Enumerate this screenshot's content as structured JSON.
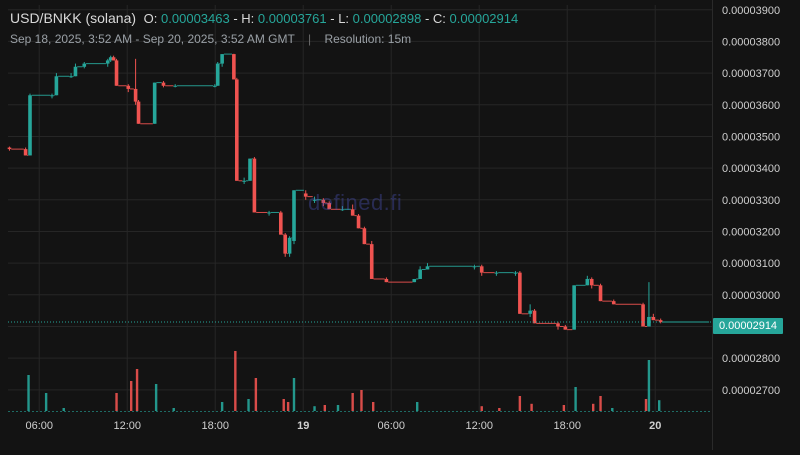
{
  "header": {
    "pair": "USD/BNKK (solana)",
    "open_label": "O:",
    "open": "0.00003463",
    "high_label": "H:",
    "high": "0.00003761",
    "low_label": "L:",
    "low": "0.00002898",
    "close_label": "C:",
    "close": "0.00002914",
    "range": "Sep 18, 2025, 3:52 AM - Sep 20, 2025, 3:52 AM GMT",
    "separator": "|",
    "resolution": "Resolution: 15m"
  },
  "watermark": "defined.fi",
  "last_price_tag": "0.00002914",
  "colors": {
    "up": "#26a69a",
    "down": "#ef5350",
    "grid": "#262626",
    "bg": "#131313"
  },
  "chart_data": {
    "type": "candlestick",
    "y_axis": {
      "ticks": [
        "0.00003900",
        "0.00003800",
        "0.00003700",
        "0.00003600",
        "0.00003500",
        "0.00003400",
        "0.00003300",
        "0.00003200",
        "0.00003100",
        "0.00003000",
        "0.00002900",
        "0.00002800",
        "0.00002700"
      ],
      "tick_values": [
        3.9e-05,
        3.8e-05,
        3.7e-05,
        3.6e-05,
        3.5e-05,
        3.4e-05,
        3.3e-05,
        3.2e-05,
        3.1e-05,
        3e-05,
        2.9e-05,
        2.8e-05,
        2.7e-05
      ],
      "ylim": [
        2.63e-05,
        3.915e-05
      ]
    },
    "x_axis": {
      "ticks": [
        "06:00",
        "12:00",
        "18:00",
        "19",
        "06:00",
        "12:00",
        "18:00",
        "20"
      ],
      "tick_hours": [
        2.13,
        8.13,
        14.13,
        20.13,
        26.13,
        32.13,
        38.13,
        44.13
      ],
      "bold": [
        false,
        false,
        false,
        true,
        false,
        false,
        false,
        true
      ],
      "xlim_hours": [
        0,
        48
      ]
    },
    "candles": [
      {
        "t": 0.1,
        "o": 3.465,
        "h": 3.468,
        "l": 3.455,
        "c": 3.46
      },
      {
        "t": 1.2,
        "o": 3.46,
        "h": 3.465,
        "l": 3.44,
        "c": 3.44
      },
      {
        "t": 1.5,
        "o": 3.44,
        "h": 3.635,
        "l": 3.44,
        "c": 3.63
      },
      {
        "t": 3.0,
        "o": 3.63,
        "h": 3.635,
        "l": 3.62,
        "c": 3.63
      },
      {
        "t": 3.3,
        "o": 3.63,
        "h": 3.7,
        "l": 3.63,
        "c": 3.69
      },
      {
        "t": 4.3,
        "o": 3.69,
        "h": 3.7,
        "l": 3.685,
        "c": 3.69
      },
      {
        "t": 4.6,
        "o": 3.69,
        "h": 3.73,
        "l": 3.69,
        "c": 3.72
      },
      {
        "t": 5.2,
        "o": 3.72,
        "h": 3.735,
        "l": 3.715,
        "c": 3.73
      },
      {
        "t": 6.8,
        "o": 3.73,
        "h": 3.745,
        "l": 3.72,
        "c": 3.74
      },
      {
        "t": 7.0,
        "o": 3.74,
        "h": 3.755,
        "l": 3.735,
        "c": 3.75
      },
      {
        "t": 7.2,
        "o": 3.75,
        "h": 3.755,
        "l": 3.74,
        "c": 3.74
      },
      {
        "t": 7.4,
        "o": 3.74,
        "h": 3.745,
        "l": 3.66,
        "c": 3.66
      },
      {
        "t": 8.2,
        "o": 3.66,
        "h": 3.665,
        "l": 3.64,
        "c": 3.65
      },
      {
        "t": 8.7,
        "o": 3.65,
        "h": 3.745,
        "l": 3.6,
        "c": 3.61
      },
      {
        "t": 8.9,
        "o": 3.61,
        "h": 3.615,
        "l": 3.54,
        "c": 3.54
      },
      {
        "t": 10.0,
        "o": 3.54,
        "h": 3.67,
        "l": 3.54,
        "c": 3.67
      },
      {
        "t": 10.6,
        "o": 3.67,
        "h": 3.675,
        "l": 3.655,
        "c": 3.66
      },
      {
        "t": 11.4,
        "o": 3.66,
        "h": 3.665,
        "l": 3.655,
        "c": 3.66
      },
      {
        "t": 14.1,
        "o": 3.66,
        "h": 3.665,
        "l": 3.655,
        "c": 3.66
      },
      {
        "t": 14.3,
        "o": 3.66,
        "h": 3.735,
        "l": 3.66,
        "c": 3.73
      },
      {
        "t": 14.6,
        "o": 3.73,
        "h": 3.76,
        "l": 3.72,
        "c": 3.76
      },
      {
        "t": 15.4,
        "o": 3.76,
        "h": 3.761,
        "l": 3.68,
        "c": 3.68
      },
      {
        "t": 15.6,
        "o": 3.68,
        "h": 3.685,
        "l": 3.36,
        "c": 3.36
      },
      {
        "t": 16.1,
        "o": 3.36,
        "h": 3.37,
        "l": 3.35,
        "c": 3.36
      },
      {
        "t": 16.5,
        "o": 3.36,
        "h": 3.43,
        "l": 3.36,
        "c": 3.43
      },
      {
        "t": 16.8,
        "o": 3.43,
        "h": 3.435,
        "l": 3.26,
        "c": 3.26
      },
      {
        "t": 17.8,
        "o": 3.26,
        "h": 3.265,
        "l": 3.25,
        "c": 3.26
      },
      {
        "t": 18.6,
        "o": 3.26,
        "h": 3.265,
        "l": 3.19,
        "c": 3.19
      },
      {
        "t": 18.9,
        "o": 3.19,
        "h": 3.195,
        "l": 3.12,
        "c": 3.13
      },
      {
        "t": 19.2,
        "o": 3.13,
        "h": 3.185,
        "l": 3.12,
        "c": 3.18
      },
      {
        "t": 19.5,
        "o": 3.17,
        "h": 3.33,
        "l": 3.16,
        "c": 3.33
      },
      {
        "t": 20.3,
        "o": 3.32,
        "h": 3.33,
        "l": 3.3,
        "c": 3.31
      },
      {
        "t": 20.9,
        "o": 3.3,
        "h": 3.31,
        "l": 3.29,
        "c": 3.3
      },
      {
        "t": 21.5,
        "o": 3.3,
        "h": 3.305,
        "l": 3.28,
        "c": 3.29
      },
      {
        "t": 21.9,
        "o": 3.29,
        "h": 3.295,
        "l": 3.27,
        "c": 3.27
      },
      {
        "t": 22.8,
        "o": 3.27,
        "h": 3.28,
        "l": 3.265,
        "c": 3.27
      },
      {
        "t": 23.5,
        "o": 3.27,
        "h": 3.285,
        "l": 3.25,
        "c": 3.25
      },
      {
        "t": 23.9,
        "o": 3.25,
        "h": 3.255,
        "l": 3.21,
        "c": 3.21
      },
      {
        "t": 24.3,
        "o": 3.21,
        "h": 3.215,
        "l": 3.16,
        "c": 3.16
      },
      {
        "t": 24.8,
        "o": 3.16,
        "h": 3.17,
        "l": 3.05,
        "c": 3.05
      },
      {
        "t": 25.8,
        "o": 3.05,
        "h": 3.055,
        "l": 3.04,
        "c": 3.04
      },
      {
        "t": 27.7,
        "o": 3.04,
        "h": 3.05,
        "l": 3.04,
        "c": 3.05
      },
      {
        "t": 28.1,
        "o": 3.05,
        "h": 3.09,
        "l": 3.05,
        "c": 3.08
      },
      {
        "t": 28.6,
        "o": 3.08,
        "h": 3.1,
        "l": 3.08,
        "c": 3.09
      },
      {
        "t": 31.8,
        "o": 3.09,
        "h": 3.095,
        "l": 3.08,
        "c": 3.09
      },
      {
        "t": 32.3,
        "o": 3.09,
        "h": 3.095,
        "l": 3.06,
        "c": 3.07
      },
      {
        "t": 33.3,
        "o": 3.07,
        "h": 3.075,
        "l": 3.06,
        "c": 3.07
      },
      {
        "t": 34.6,
        "o": 3.07,
        "h": 3.075,
        "l": 3.06,
        "c": 3.07
      },
      {
        "t": 34.9,
        "o": 3.07,
        "h": 3.075,
        "l": 2.94,
        "c": 2.94
      },
      {
        "t": 35.6,
        "o": 2.94,
        "h": 2.97,
        "l": 2.93,
        "c": 2.95
      },
      {
        "t": 35.9,
        "o": 2.95,
        "h": 2.955,
        "l": 2.91,
        "c": 2.91
      },
      {
        "t": 37.5,
        "o": 2.91,
        "h": 2.915,
        "l": 2.89,
        "c": 2.9
      },
      {
        "t": 38.0,
        "o": 2.9,
        "h": 2.905,
        "l": 2.89,
        "c": 2.89
      },
      {
        "t": 38.6,
        "o": 2.89,
        "h": 3.03,
        "l": 2.89,
        "c": 3.03
      },
      {
        "t": 39.5,
        "o": 3.03,
        "h": 3.06,
        "l": 3.03,
        "c": 3.05
      },
      {
        "t": 39.8,
        "o": 3.05,
        "h": 3.055,
        "l": 3.02,
        "c": 3.03
      },
      {
        "t": 40.4,
        "o": 3.03,
        "h": 3.035,
        "l": 2.98,
        "c": 2.98
      },
      {
        "t": 41.3,
        "o": 2.98,
        "h": 2.985,
        "l": 2.97,
        "c": 2.97
      },
      {
        "t": 43.3,
        "o": 2.97,
        "h": 2.975,
        "l": 2.9,
        "c": 2.9
      },
      {
        "t": 43.7,
        "o": 2.9,
        "h": 3.04,
        "l": 2.9,
        "c": 2.93
      },
      {
        "t": 44.0,
        "o": 2.93,
        "h": 2.94,
        "l": 2.92,
        "c": 2.92
      },
      {
        "t": 44.5,
        "o": 2.92,
        "h": 2.925,
        "l": 2.91,
        "c": 2.914
      }
    ],
    "volume": [
      {
        "t": 1.4,
        "v": 0.6,
        "up": true
      },
      {
        "t": 2.6,
        "v": 0.3,
        "up": true
      },
      {
        "t": 3.8,
        "v": 0.05,
        "up": true
      },
      {
        "t": 7.4,
        "v": 0.3,
        "up": false
      },
      {
        "t": 8.4,
        "v": 0.5,
        "up": false
      },
      {
        "t": 8.8,
        "v": 0.7,
        "up": false
      },
      {
        "t": 10.1,
        "v": 0.45,
        "up": true
      },
      {
        "t": 11.3,
        "v": 0.05,
        "up": true
      },
      {
        "t": 14.6,
        "v": 0.15,
        "up": true
      },
      {
        "t": 15.5,
        "v": 1.0,
        "up": false
      },
      {
        "t": 16.4,
        "v": 0.2,
        "up": true
      },
      {
        "t": 16.9,
        "v": 0.55,
        "up": false
      },
      {
        "t": 18.8,
        "v": 0.2,
        "up": false
      },
      {
        "t": 19.1,
        "v": 0.15,
        "up": false
      },
      {
        "t": 19.5,
        "v": 0.55,
        "up": true
      },
      {
        "t": 20.9,
        "v": 0.08,
        "up": true
      },
      {
        "t": 21.6,
        "v": 0.1,
        "up": false
      },
      {
        "t": 22.5,
        "v": 0.1,
        "up": true
      },
      {
        "t": 23.5,
        "v": 0.3,
        "up": false
      },
      {
        "t": 24.1,
        "v": 0.35,
        "up": false
      },
      {
        "t": 24.9,
        "v": 0.15,
        "up": false
      },
      {
        "t": 27.9,
        "v": 0.15,
        "up": true
      },
      {
        "t": 32.3,
        "v": 0.08,
        "up": false
      },
      {
        "t": 33.5,
        "v": 0.05,
        "up": false
      },
      {
        "t": 34.9,
        "v": 0.25,
        "up": false
      },
      {
        "t": 35.7,
        "v": 0.12,
        "up": false
      },
      {
        "t": 37.9,
        "v": 0.1,
        "up": false
      },
      {
        "t": 38.7,
        "v": 0.4,
        "up": true
      },
      {
        "t": 39.9,
        "v": 0.12,
        "up": false
      },
      {
        "t": 40.4,
        "v": 0.25,
        "up": false
      },
      {
        "t": 41.2,
        "v": 0.05,
        "up": true
      },
      {
        "t": 43.5,
        "v": 0.2,
        "up": false
      },
      {
        "t": 43.7,
        "v": 0.85,
        "up": true
      },
      {
        "t": 44.4,
        "v": 0.18,
        "up": true
      }
    ]
  }
}
